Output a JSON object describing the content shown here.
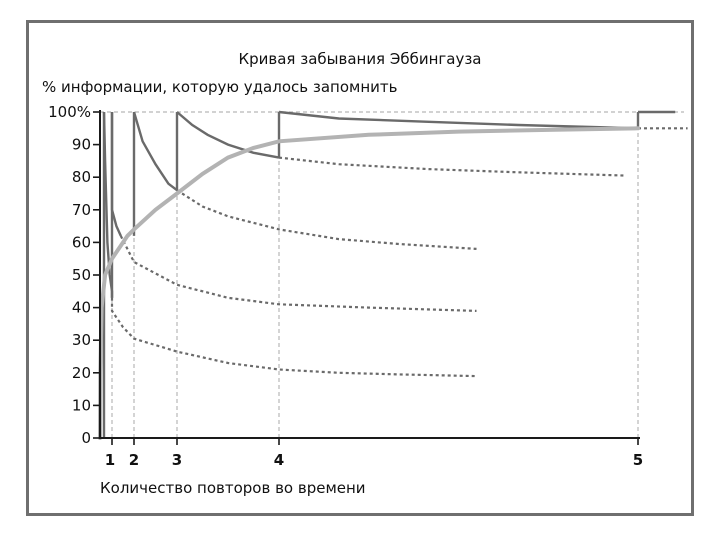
{
  "chart_data": {
    "type": "line",
    "title": "Кривая забывания Эббингауза",
    "ylabel": "% информации, которую удалось запомнить",
    "xlabel": "Количество повторов во времени",
    "ylim": [
      0,
      100
    ],
    "y_ticks": [
      {
        "value": 0,
        "label": "0"
      },
      {
        "value": 10,
        "label": "10"
      },
      {
        "value": 20,
        "label": "20"
      },
      {
        "value": 30,
        "label": "30"
      },
      {
        "value": 40,
        "label": "40"
      },
      {
        "value": 50,
        "label": "50"
      },
      {
        "value": 60,
        "label": "60"
      },
      {
        "value": 70,
        "label": "70"
      },
      {
        "value": 80,
        "label": "80"
      },
      {
        "value": 90,
        "label": "90"
      },
      {
        "value": 100,
        "label": "100%"
      }
    ],
    "x_ticks": [
      {
        "value": 1,
        "label": "1"
      },
      {
        "value": 2,
        "label": "2"
      },
      {
        "value": 3,
        "label": "3"
      },
      {
        "value": 4,
        "label": "4"
      },
      {
        "value": 5,
        "label": "5"
      }
    ],
    "repetitions": [
      1,
      2,
      3,
      4,
      5
    ],
    "retention_envelope": [
      [
        0.0,
        0
      ],
      [
        0.02,
        20
      ],
      [
        0.1,
        40
      ],
      [
        0.3,
        50
      ],
      [
        1,
        55
      ],
      [
        1.7,
        62
      ],
      [
        2,
        64
      ],
      [
        2.5,
        70
      ],
      [
        3,
        75
      ],
      [
        3.5,
        81
      ],
      [
        4,
        86
      ],
      [
        4.5,
        89
      ],
      [
        5,
        91
      ],
      [
        6.5,
        93
      ],
      [
        8,
        94
      ],
      [
        9.5,
        94.5
      ],
      [
        11,
        95
      ]
    ],
    "forgetting_curves": [
      {
        "review_at": 0.25,
        "solid": [
          [
            0.25,
            100
          ],
          [
            0.3,
            85
          ],
          [
            0.35,
            72
          ],
          [
            0.4,
            60
          ],
          [
            0.5,
            50
          ],
          [
            0.65,
            45
          ],
          [
            0.7,
            43
          ]
        ],
        "dashed": [
          [
            0.7,
            43
          ],
          [
            1,
            39
          ],
          [
            1.5,
            34
          ],
          [
            2,
            30.5
          ],
          [
            3,
            26.5
          ],
          [
            4,
            23
          ],
          [
            5,
            21
          ],
          [
            6,
            20
          ],
          [
            7,
            19.5
          ],
          [
            8.3,
            19
          ]
        ]
      },
      {
        "review_at": 0.6,
        "solid": [
          [
            0.6,
            100
          ],
          [
            0.8,
            80
          ],
          [
            1,
            70
          ],
          [
            1.2,
            65
          ],
          [
            1.4,
            62
          ]
        ],
        "dashed": [
          [
            1.4,
            62
          ],
          [
            2,
            54
          ],
          [
            3,
            47
          ],
          [
            4,
            43
          ],
          [
            5,
            41
          ],
          [
            6.5,
            40
          ],
          [
            8.3,
            39
          ]
        ]
      },
      {
        "review_at": 2,
        "solid": [
          [
            2,
            100
          ],
          [
            2.2,
            91
          ],
          [
            2.5,
            84
          ],
          [
            2.8,
            78
          ],
          [
            3,
            76
          ]
        ],
        "dashed": [
          [
            3,
            76
          ],
          [
            3.5,
            71
          ],
          [
            4,
            68
          ],
          [
            5,
            64
          ],
          [
            6,
            61
          ],
          [
            7,
            59.5
          ],
          [
            8.3,
            58
          ]
        ]
      },
      {
        "review_at": 3,
        "solid": [
          [
            3,
            100
          ],
          [
            3.3,
            96
          ],
          [
            3.6,
            93
          ],
          [
            4,
            90
          ],
          [
            4.5,
            87.5
          ],
          [
            5,
            86
          ]
        ],
        "dashed": [
          [
            5,
            86
          ],
          [
            6,
            84
          ],
          [
            7.5,
            82.5
          ],
          [
            9,
            81.5
          ],
          [
            10.8,
            80.5
          ]
        ]
      },
      {
        "review_at": 5,
        "solid": [
          [
            5,
            100
          ],
          [
            6,
            98
          ],
          [
            7.5,
            97
          ],
          [
            9,
            96
          ],
          [
            11,
            95
          ]
        ],
        "dashed": []
      },
      {
        "review_at": 11,
        "solid": [
          [
            11,
            100
          ],
          [
            11.6,
            100
          ]
        ],
        "dashed": [
          [
            11,
            95
          ],
          [
            11.8,
            95
          ]
        ]
      }
    ],
    "grid": false,
    "reference_lines": "dashed at 100% and at each repetition",
    "colors": {
      "envelope": "#b3b3b3",
      "curves": "#6a6a6a",
      "axes": "#1a1a1a",
      "guides": "#b8b8b8"
    }
  }
}
